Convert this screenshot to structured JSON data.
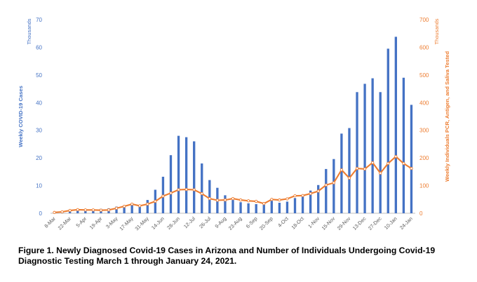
{
  "chart_data": {
    "type": "bar+line",
    "title": "",
    "left_axis": {
      "label": "Weekly COVID-19 Cases",
      "unit": "Thousands",
      "ylim": [
        0,
        70
      ],
      "ticks": [
        "0",
        "10",
        "20",
        "30",
        "40",
        "50",
        "60",
        "70"
      ],
      "color": "#4472c4"
    },
    "right_axis": {
      "label": "Weekly Individuals PCR, Antigen, and Saliva Tested",
      "unit": "Thousands",
      "ylim": [
        0,
        700
      ],
      "ticks": [
        "0",
        "100",
        "200",
        "300",
        "400",
        "500",
        "600",
        "700"
      ],
      "color": "#ed7d31"
    },
    "x_tick_labels": [
      "8-Mar",
      "22-Mar",
      "5-Apr",
      "19-Apr",
      "3-May",
      "17-May",
      "31-May",
      "14-Jun",
      "28-Jun",
      "12-Jul",
      "26-Jul",
      "9-Aug",
      "23-Aug",
      "6-Sep",
      "20-Sep",
      "4-Oct",
      "18-Oct",
      "1-Nov",
      "15-Nov",
      "29-Nov",
      "13-Dec",
      "27-Dec",
      "10-Jan",
      "24-Jan"
    ],
    "grid": false,
    "legend": "none",
    "series": [
      {
        "type": "bar",
        "axis": "left",
        "color": "#4472c4",
        "values": [
          0.1,
          0.5,
          0.9,
          1.2,
          1.4,
          1.5,
          1.6,
          1.8,
          2.4,
          2.9,
          3.1,
          3.0,
          4.8,
          8.5,
          13.2,
          21.0,
          28.0,
          27.5,
          26.0,
          18.0,
          12.0,
          9.2,
          6.5,
          4.8,
          4.0,
          3.6,
          3.3,
          3.1,
          4.5,
          3.8,
          4.2,
          5.5,
          6.5,
          8.2,
          10.2,
          16.0,
          19.6,
          28.8,
          30.8,
          43.8,
          46.8,
          48.8,
          43.8,
          59.5,
          63.8,
          49.0,
          39.2
        ]
      },
      {
        "type": "line",
        "axis": "right",
        "color": "#ed7d31",
        "marker_color": "#ffffff",
        "values": [
          3,
          5,
          10,
          13,
          12,
          12,
          11,
          12,
          18,
          25,
          33,
          27,
          33,
          43,
          62,
          73,
          85,
          86,
          85,
          71,
          53,
          47,
          48,
          53,
          48,
          45,
          43,
          35,
          50,
          48,
          52,
          63,
          64,
          71,
          80,
          102,
          110,
          157,
          127,
          162,
          160,
          183,
          145,
          180,
          205,
          180,
          162
        ]
      }
    ]
  },
  "caption": {
    "line1": "Figure 1. Newly Diagnosed Covid-19 Cases in Arizona and Number of Individuals Undergoing Covid-19",
    "line2": "Diagnostic Testing March 1 through January 24, 2021."
  }
}
